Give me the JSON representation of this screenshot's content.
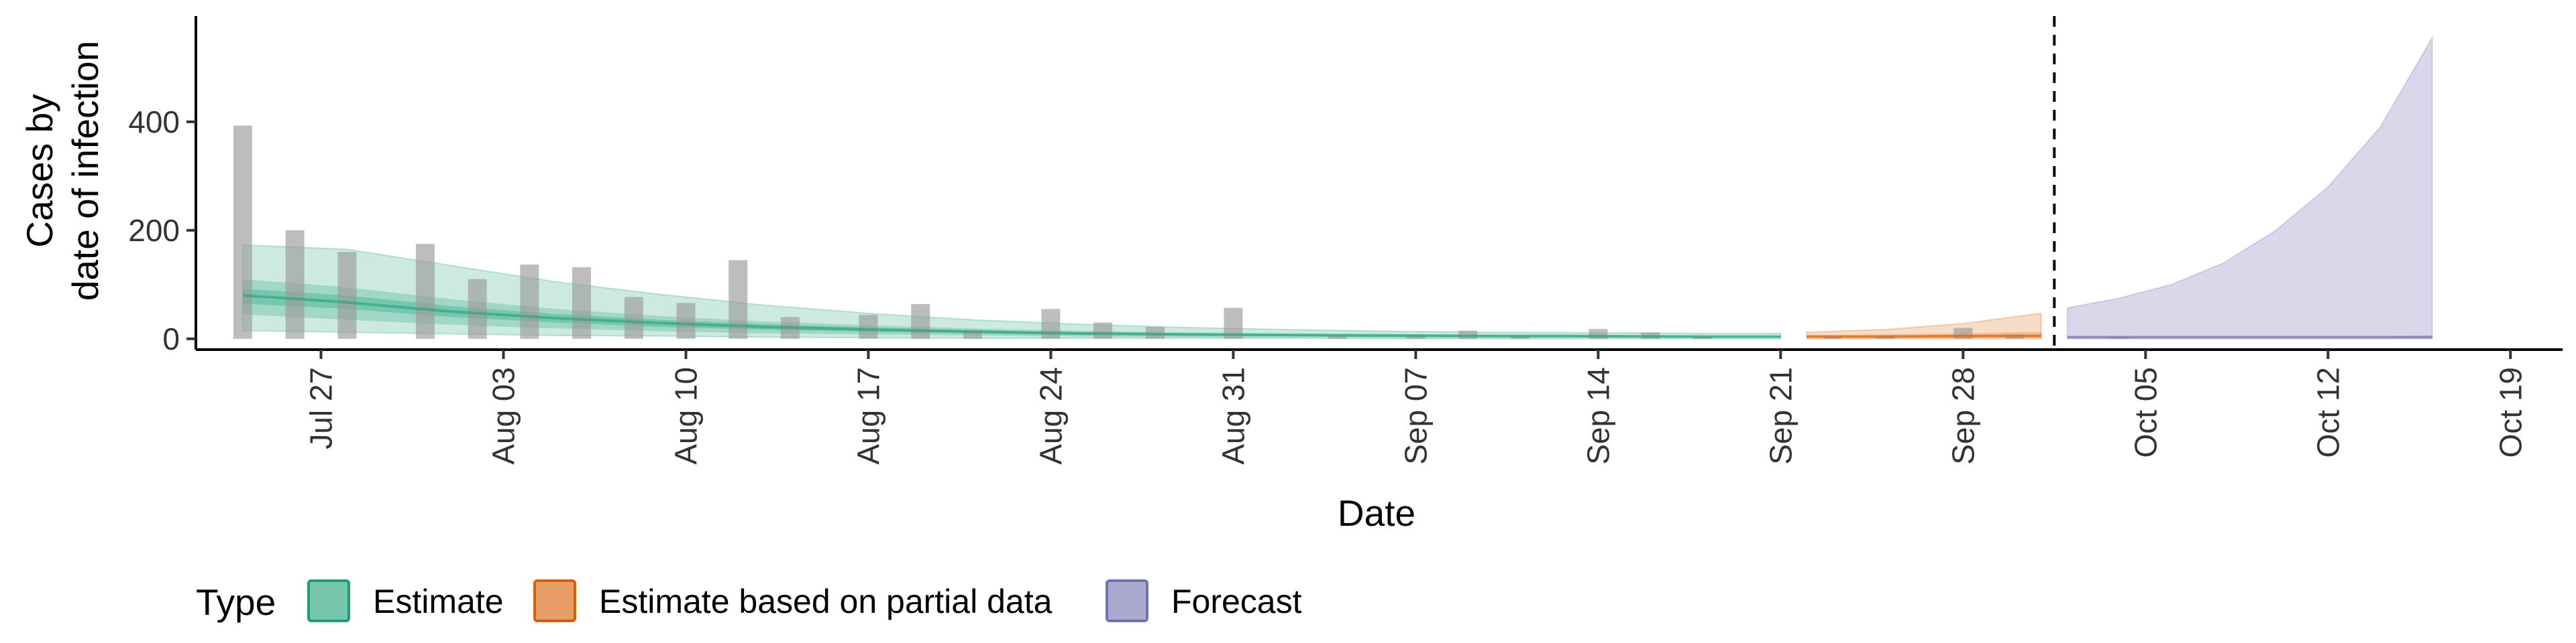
{
  "chart_data": {
    "type": "bar",
    "title": "",
    "xlabel": "Date",
    "ylabel_lines": [
      "Cases by",
      "date of infection"
    ],
    "ylim": [
      -20,
      590
    ],
    "y_ticks": [
      0,
      200,
      400
    ],
    "x_tick_labels": [
      "Jul 27",
      "Aug 03",
      "Aug 10",
      "Aug 17",
      "Aug 24",
      "Aug 31",
      "Sep 07",
      "Sep 14",
      "Sep 21",
      "Sep 28",
      "Oct 05",
      "Oct 12",
      "Oct 19"
    ],
    "reported_cases": {
      "dates": [
        "2020-07-24",
        "2020-07-26",
        "2020-07-28",
        "2020-07-31",
        "2020-08-02",
        "2020-08-04",
        "2020-08-06",
        "2020-08-08",
        "2020-08-10",
        "2020-08-12",
        "2020-08-14",
        "2020-08-17",
        "2020-08-19",
        "2020-08-21",
        "2020-08-24",
        "2020-08-26",
        "2020-08-28",
        "2020-08-31",
        "2020-09-04",
        "2020-09-07",
        "2020-09-09",
        "2020-09-11",
        "2020-09-14",
        "2020-09-16",
        "2020-09-18",
        "2020-09-23",
        "2020-09-25",
        "2020-09-28",
        "2020-09-30",
        "2020-10-04"
      ],
      "values": [
        393,
        200,
        160,
        175,
        110,
        137,
        132,
        77,
        66,
        145,
        40,
        44,
        64,
        16,
        55,
        30,
        22,
        57,
        5,
        7,
        15,
        5,
        18,
        12,
        5,
        5,
        6,
        20,
        8,
        4
      ]
    },
    "cut_date": "2020-10-01",
    "series": [
      {
        "name": "Estimate",
        "color": "#1b9e77",
        "dates": [
          "2020-07-24",
          "2020-07-28",
          "2020-08-01",
          "2020-08-05",
          "2020-08-09",
          "2020-08-13",
          "2020-08-17",
          "2020-08-21",
          "2020-08-25",
          "2020-08-29",
          "2020-09-02",
          "2020-09-06",
          "2020-09-10",
          "2020-09-14",
          "2020-09-18",
          "2020-09-21"
        ],
        "median": [
          80,
          67,
          50,
          38,
          29,
          22,
          17,
          13,
          10,
          8,
          7,
          6,
          5,
          5,
          4,
          4
        ],
        "lower_90": [
          15,
          12,
          9,
          6,
          5,
          3,
          2,
          1,
          1,
          1,
          1,
          0,
          0,
          0,
          0,
          0
        ],
        "upper_90": [
          173,
          165,
          135,
          105,
          82,
          62,
          47,
          35,
          27,
          21,
          17,
          14,
          12,
          11,
          10,
          10
        ],
        "lower_50": [
          45,
          35,
          26,
          19,
          14,
          10,
          8,
          6,
          4,
          3,
          3,
          2,
          2,
          2,
          2,
          2
        ],
        "upper_50": [
          110,
          95,
          73,
          55,
          42,
          32,
          25,
          19,
          15,
          12,
          10,
          9,
          8,
          7,
          6,
          6
        ],
        "lower_20": [
          65,
          55,
          40,
          30,
          22,
          17,
          13,
          10,
          7,
          6,
          5,
          4,
          4,
          3,
          3,
          3
        ],
        "upper_20": [
          92,
          80,
          60,
          46,
          35,
          27,
          21,
          16,
          12,
          10,
          8,
          7,
          6,
          6,
          5,
          5
        ]
      },
      {
        "name": "Estimate based on partial data",
        "color": "#d95f02",
        "dates": [
          "2020-09-22",
          "2020-09-25",
          "2020-09-28",
          "2020-10-01"
        ],
        "median": [
          4,
          4,
          5,
          5
        ],
        "lower_90": [
          0,
          0,
          0,
          0
        ],
        "upper_90": [
          12,
          17,
          28,
          47
        ],
        "lower_50": [
          2,
          2,
          2,
          2
        ],
        "upper_50": [
          7,
          8,
          10,
          13
        ],
        "lower_20": [
          3,
          3,
          3,
          4
        ],
        "upper_20": [
          5,
          6,
          7,
          8
        ]
      },
      {
        "name": "Forecast",
        "color": "#7570b3",
        "dates": [
          "2020-10-02",
          "2020-10-04",
          "2020-10-06",
          "2020-10-08",
          "2020-10-10",
          "2020-10-12",
          "2020-10-14",
          "2020-10-16"
        ],
        "median": [
          3,
          3,
          3,
          3,
          3,
          3,
          3,
          3
        ],
        "lower_90": [
          0,
          0,
          0,
          0,
          0,
          0,
          0,
          0
        ],
        "upper_90": [
          57,
          75,
          100,
          140,
          200,
          280,
          390,
          555
        ],
        "lower_50": [
          1,
          1,
          1,
          1,
          1,
          1,
          1,
          1
        ],
        "upper_50": [
          5,
          5,
          5,
          5,
          5,
          5,
          5,
          6
        ],
        "lower_20": [
          2,
          2,
          2,
          2,
          2,
          2,
          2,
          2
        ],
        "upper_20": [
          4,
          4,
          4,
          4,
          4,
          4,
          4,
          5
        ]
      }
    ],
    "legend": {
      "title": "Type",
      "position": "bottom-left",
      "entries": [
        "Estimate",
        "Estimate based on partial data",
        "Forecast"
      ]
    },
    "grid": false
  }
}
